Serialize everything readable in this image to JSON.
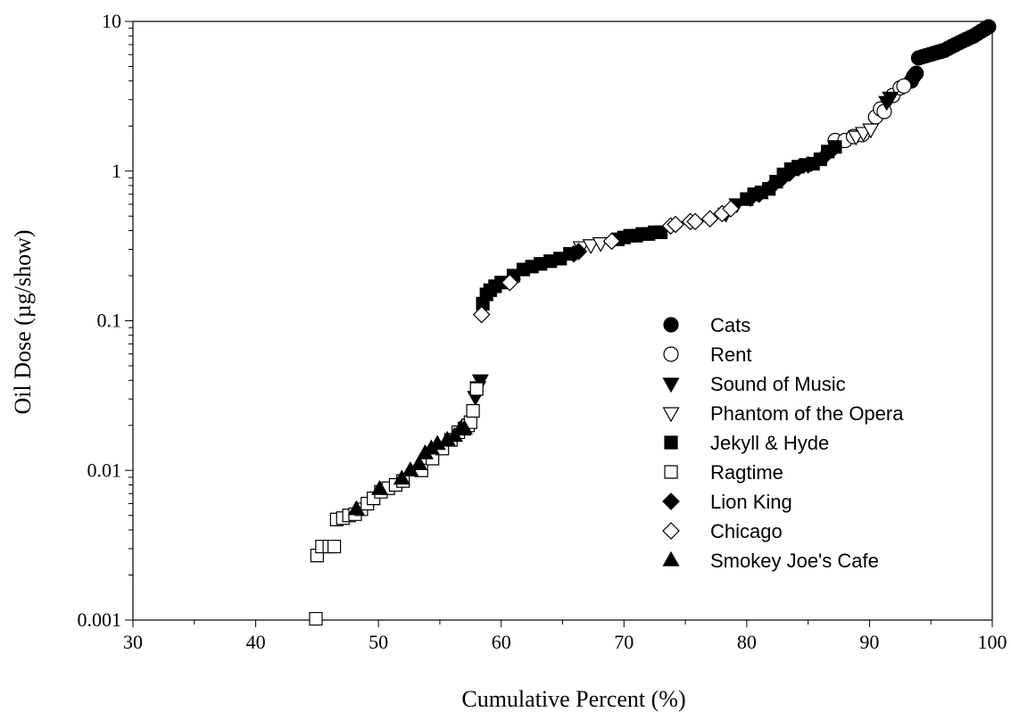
{
  "chart_data": {
    "type": "scatter",
    "title": "",
    "xlabel": "Cumulative Percent (%)",
    "ylabel": "Oil Dose (µg/show)",
    "xlim": [
      30,
      100
    ],
    "ylim": [
      0.001,
      10
    ],
    "yscale": "log",
    "grid": false,
    "legend_position": "right",
    "x_ticks": [
      "30",
      "40",
      "50",
      "60",
      "70",
      "80",
      "90",
      "100"
    ],
    "y_ticks": [
      "0.001",
      "0.01",
      "0.1",
      "1",
      "10"
    ],
    "series": [
      {
        "name": "Cats",
        "marker": "circle",
        "fill": "filled",
        "points": [
          [
            93.4,
            4.0
          ],
          [
            93.6,
            4.3
          ],
          [
            93.8,
            4.5
          ],
          [
            94.0,
            5.7
          ],
          [
            94.3,
            5.8
          ],
          [
            94.6,
            5.9
          ],
          [
            94.9,
            6.0
          ],
          [
            95.2,
            6.1
          ],
          [
            95.5,
            6.2
          ],
          [
            95.8,
            6.3
          ],
          [
            96.1,
            6.4
          ],
          [
            96.4,
            6.6
          ],
          [
            96.7,
            6.8
          ],
          [
            97.0,
            7.0
          ],
          [
            97.3,
            7.2
          ],
          [
            97.6,
            7.4
          ],
          [
            97.9,
            7.6
          ],
          [
            98.2,
            7.8
          ],
          [
            98.5,
            8.0
          ],
          [
            98.8,
            8.3
          ],
          [
            99.1,
            8.6
          ],
          [
            99.4,
            8.9
          ],
          [
            99.7,
            9.2
          ]
        ]
      },
      {
        "name": "Rent",
        "marker": "circle",
        "fill": "open",
        "points": [
          [
            87.2,
            1.6
          ],
          [
            88.0,
            1.6
          ],
          [
            88.7,
            1.7
          ],
          [
            89.4,
            1.75
          ],
          [
            90.5,
            2.3
          ],
          [
            90.9,
            2.6
          ],
          [
            91.2,
            2.5
          ],
          [
            91.9,
            3.2
          ],
          [
            92.5,
            3.6
          ],
          [
            92.8,
            3.7
          ]
        ]
      },
      {
        "name": "Sound of Music",
        "marker": "triangle-down",
        "fill": "filled",
        "points": [
          [
            57.9,
            0.031
          ],
          [
            58.1,
            0.036
          ],
          [
            58.3,
            0.04
          ],
          [
            78.3,
            0.52
          ],
          [
            79.2,
            0.6
          ],
          [
            91.4,
            2.9
          ],
          [
            91.7,
            3.1
          ]
        ]
      },
      {
        "name": "Phantom of the Opera",
        "marker": "triangle-down",
        "fill": "open",
        "points": [
          [
            66.5,
            0.31
          ],
          [
            67.3,
            0.32
          ],
          [
            68.1,
            0.33
          ],
          [
            88.9,
            1.7
          ],
          [
            89.5,
            1.8
          ],
          [
            90.1,
            1.9
          ]
        ]
      },
      {
        "name": "Jekyll & Hyde",
        "marker": "square",
        "fill": "filled",
        "points": [
          [
            58.5,
            0.13
          ],
          [
            58.8,
            0.15
          ],
          [
            59.1,
            0.16
          ],
          [
            59.5,
            0.17
          ],
          [
            60.0,
            0.18
          ],
          [
            61.0,
            0.2
          ],
          [
            61.8,
            0.22
          ],
          [
            62.5,
            0.23
          ],
          [
            63.2,
            0.24
          ],
          [
            64.0,
            0.25
          ],
          [
            64.8,
            0.26
          ],
          [
            65.6,
            0.28
          ],
          [
            69.5,
            0.35
          ],
          [
            70.0,
            0.36
          ],
          [
            70.5,
            0.37
          ],
          [
            71.0,
            0.37
          ],
          [
            71.5,
            0.38
          ],
          [
            72.0,
            0.38
          ],
          [
            72.5,
            0.39
          ],
          [
            73.0,
            0.39
          ],
          [
            80.0,
            0.65
          ],
          [
            80.6,
            0.7
          ],
          [
            81.2,
            0.72
          ],
          [
            81.8,
            0.76
          ],
          [
            82.4,
            0.85
          ],
          [
            83.0,
            0.95
          ],
          [
            83.6,
            1.03
          ],
          [
            84.2,
            1.07
          ],
          [
            84.8,
            1.1
          ],
          [
            85.4,
            1.12
          ],
          [
            86.0,
            1.2
          ],
          [
            86.6,
            1.35
          ],
          [
            87.2,
            1.45
          ]
        ]
      },
      {
        "name": "Ragtime",
        "marker": "square",
        "fill": "open",
        "points": [
          [
            44.9,
            0.00102
          ],
          [
            45.0,
            0.0027
          ],
          [
            45.4,
            0.0031
          ],
          [
            46.0,
            0.0031
          ],
          [
            46.4,
            0.0031
          ],
          [
            46.6,
            0.0047
          ],
          [
            47.1,
            0.0048
          ],
          [
            47.6,
            0.005
          ],
          [
            48.1,
            0.0051
          ],
          [
            48.6,
            0.0055
          ],
          [
            49.1,
            0.006
          ],
          [
            49.6,
            0.0065
          ],
          [
            50.2,
            0.0072
          ],
          [
            50.8,
            0.0076
          ],
          [
            51.4,
            0.008
          ],
          [
            52.0,
            0.0085
          ],
          [
            53.5,
            0.01
          ],
          [
            54.4,
            0.012
          ],
          [
            55.2,
            0.014
          ],
          [
            55.9,
            0.016
          ],
          [
            56.5,
            0.018
          ],
          [
            57.0,
            0.019
          ],
          [
            57.3,
            0.02
          ],
          [
            57.5,
            0.021
          ],
          [
            57.7,
            0.025
          ],
          [
            58.0,
            0.035
          ]
        ]
      },
      {
        "name": "Lion King",
        "marker": "diamond",
        "fill": "filled",
        "points": [
          [
            60.9,
            0.19
          ],
          [
            65.9,
            0.28
          ],
          [
            66.3,
            0.29
          ],
          [
            80.3,
            0.66
          ],
          [
            81.0,
            0.7
          ],
          [
            82.1,
            0.8
          ],
          [
            82.8,
            0.88
          ],
          [
            83.5,
            0.97
          ],
          [
            84.2,
            1.05
          ],
          [
            85.0,
            1.1
          ],
          [
            86.3,
            1.25
          ],
          [
            87.0,
            1.4
          ]
        ]
      },
      {
        "name": "Chicago",
        "marker": "diamond",
        "fill": "open",
        "points": [
          [
            58.4,
            0.11
          ],
          [
            60.7,
            0.18
          ],
          [
            69.0,
            0.34
          ],
          [
            73.8,
            0.43
          ],
          [
            74.2,
            0.44
          ],
          [
            75.4,
            0.46
          ],
          [
            75.8,
            0.46
          ],
          [
            77.0,
            0.48
          ],
          [
            78.0,
            0.52
          ],
          [
            78.7,
            0.56
          ]
        ]
      },
      {
        "name": "Smokey Joe's Cafe",
        "marker": "triangle-up",
        "fill": "filled",
        "points": [
          [
            48.2,
            0.0055
          ],
          [
            50.1,
            0.0075
          ],
          [
            51.9,
            0.0088
          ],
          [
            52.6,
            0.01
          ],
          [
            53.3,
            0.011
          ],
          [
            53.8,
            0.013
          ],
          [
            54.3,
            0.014
          ],
          [
            54.8,
            0.015
          ],
          [
            55.6,
            0.016
          ],
          [
            56.2,
            0.017
          ],
          [
            56.7,
            0.019
          ],
          [
            57.0,
            0.019
          ]
        ]
      }
    ]
  }
}
